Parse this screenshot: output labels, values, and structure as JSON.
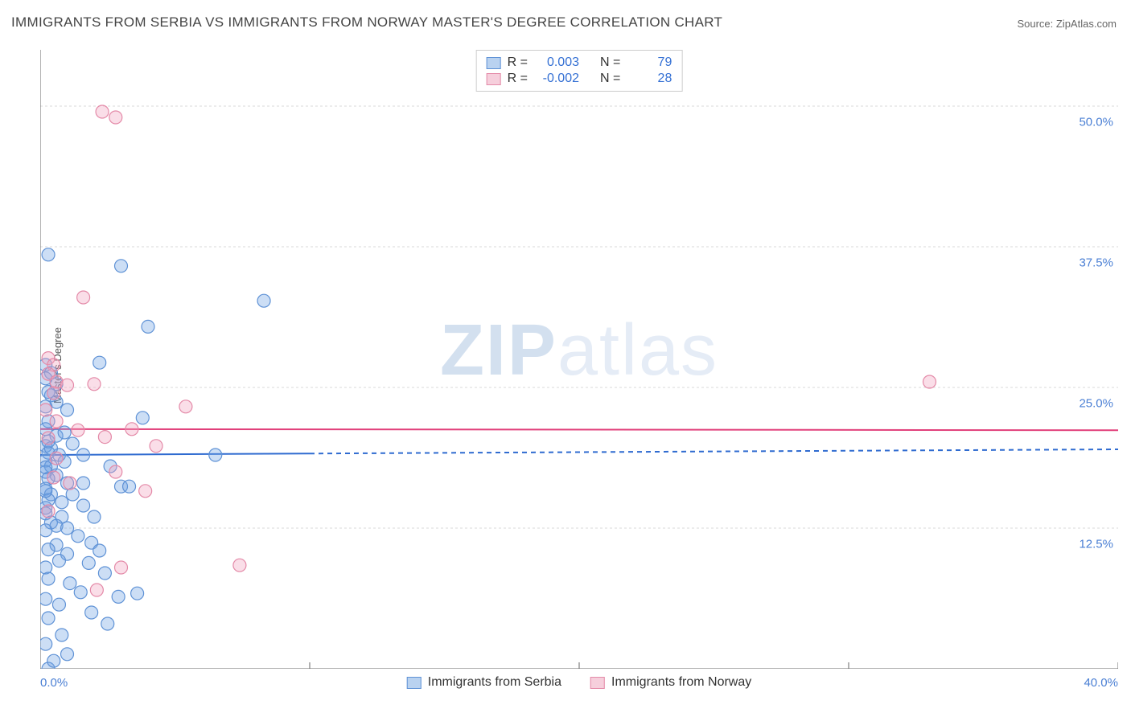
{
  "title": "IMMIGRANTS FROM SERBIA VS IMMIGRANTS FROM NORWAY MASTER'S DEGREE CORRELATION CHART",
  "source": "Source: ZipAtlas.com",
  "y_axis_label": "Master's Degree",
  "watermark_bold": "ZIP",
  "watermark_light": "atlas",
  "chart": {
    "type": "scatter",
    "xlim": [
      0.0,
      40.0
    ],
    "ylim": [
      0.0,
      55.0
    ],
    "x_ticks": [
      0.0,
      10.0,
      20.0,
      30.0,
      40.0
    ],
    "x_tick_labels_visible": [
      "0.0%",
      "40.0%"
    ],
    "y_grid_lines": [
      12.5,
      25.0,
      37.5,
      50.0
    ],
    "y_tick_labels": [
      "12.5%",
      "25.0%",
      "37.5%",
      "50.0%"
    ],
    "background_color": "#ffffff",
    "grid_color": "#d9d9d9",
    "axis_color": "#666666",
    "tick_label_color": "#4a7fd4",
    "marker_radius": 8,
    "marker_stroke_width": 1.2,
    "series": [
      {
        "name": "Immigrants from Serbia",
        "fill": "rgba(110,160,225,0.35)",
        "stroke": "#5f92d6",
        "swatch_fill": "#b9d2f0",
        "swatch_stroke": "#5f92d6",
        "R": "0.003",
        "N": "79",
        "regression": {
          "y_at_xmin": 19.0,
          "y_at_xmax": 19.5,
          "solid_until_x": 10.0,
          "color": "#2f6bd0",
          "width": 2
        },
        "points": [
          [
            0.3,
            36.8
          ],
          [
            3.0,
            35.8
          ],
          [
            4.0,
            30.4
          ],
          [
            8.3,
            32.7
          ],
          [
            2.2,
            27.2
          ],
          [
            0.2,
            27.0
          ],
          [
            0.4,
            26.3
          ],
          [
            0.6,
            25.3
          ],
          [
            0.4,
            24.3
          ],
          [
            0.6,
            23.7
          ],
          [
            0.2,
            23.3
          ],
          [
            1.0,
            23.0
          ],
          [
            3.8,
            22.3
          ],
          [
            0.3,
            22.0
          ],
          [
            0.2,
            21.3
          ],
          [
            0.6,
            20.7
          ],
          [
            1.2,
            20.0
          ],
          [
            0.2,
            19.8
          ],
          [
            0.3,
            19.2
          ],
          [
            0.7,
            19.0
          ],
          [
            1.6,
            19.0
          ],
          [
            6.5,
            19.0
          ],
          [
            0.2,
            18.5
          ],
          [
            0.4,
            18.0
          ],
          [
            2.6,
            18.0
          ],
          [
            0.2,
            17.5
          ],
          [
            0.6,
            17.2
          ],
          [
            0.3,
            16.9
          ],
          [
            1.0,
            16.5
          ],
          [
            1.6,
            16.5
          ],
          [
            3.0,
            16.2
          ],
          [
            3.3,
            16.2
          ],
          [
            0.2,
            16.0
          ],
          [
            0.4,
            15.5
          ],
          [
            1.2,
            15.5
          ],
          [
            0.3,
            15.0
          ],
          [
            0.8,
            14.8
          ],
          [
            1.6,
            14.5
          ],
          [
            0.2,
            14.3
          ],
          [
            0.2,
            13.8
          ],
          [
            0.8,
            13.5
          ],
          [
            2.0,
            13.5
          ],
          [
            0.4,
            13.0
          ],
          [
            0.6,
            12.7
          ],
          [
            1.0,
            12.5
          ],
          [
            0.2,
            12.3
          ],
          [
            1.4,
            11.8
          ],
          [
            1.9,
            11.2
          ],
          [
            0.6,
            11.0
          ],
          [
            2.2,
            10.5
          ],
          [
            0.3,
            10.6
          ],
          [
            1.0,
            10.2
          ],
          [
            0.7,
            9.6
          ],
          [
            1.8,
            9.4
          ],
          [
            0.2,
            9.0
          ],
          [
            2.4,
            8.5
          ],
          [
            0.3,
            8.0
          ],
          [
            1.1,
            7.6
          ],
          [
            1.5,
            6.8
          ],
          [
            2.9,
            6.4
          ],
          [
            3.6,
            6.7
          ],
          [
            0.2,
            6.2
          ],
          [
            0.7,
            5.7
          ],
          [
            1.9,
            5.0
          ],
          [
            0.3,
            4.5
          ],
          [
            2.5,
            4.0
          ],
          [
            0.8,
            3.0
          ],
          [
            0.2,
            2.2
          ],
          [
            1.0,
            1.3
          ],
          [
            0.3,
            0.0
          ],
          [
            0.5,
            0.7
          ],
          [
            0.2,
            15.8
          ],
          [
            0.9,
            21.0
          ],
          [
            0.3,
            24.6
          ],
          [
            0.2,
            25.8
          ],
          [
            0.4,
            19.6
          ],
          [
            0.2,
            17.9
          ],
          [
            0.9,
            18.4
          ],
          [
            0.3,
            20.2
          ]
        ]
      },
      {
        "name": "Immigrants from Norway",
        "fill": "rgba(240,160,190,0.35)",
        "stroke": "#e48aa8",
        "swatch_fill": "#f6cfdc",
        "swatch_stroke": "#e48aa8",
        "R": "-0.002",
        "N": "28",
        "regression": {
          "y_at_xmin": 21.3,
          "y_at_xmax": 21.2,
          "solid_until_x": 40.0,
          "color": "#e13f7a",
          "width": 2
        },
        "points": [
          [
            2.3,
            49.5
          ],
          [
            2.8,
            49.0
          ],
          [
            1.6,
            33.0
          ],
          [
            0.3,
            27.6
          ],
          [
            0.5,
            27.0
          ],
          [
            0.3,
            26.2
          ],
          [
            0.6,
            25.5
          ],
          [
            1.0,
            25.2
          ],
          [
            2.0,
            25.3
          ],
          [
            0.5,
            24.5
          ],
          [
            5.4,
            23.3
          ],
          [
            33.0,
            25.5
          ],
          [
            0.2,
            23.0
          ],
          [
            0.6,
            22.0
          ],
          [
            1.4,
            21.2
          ],
          [
            2.4,
            20.6
          ],
          [
            3.4,
            21.3
          ],
          [
            4.3,
            19.8
          ],
          [
            0.6,
            18.7
          ],
          [
            2.8,
            17.5
          ],
          [
            0.5,
            17.0
          ],
          [
            1.1,
            16.5
          ],
          [
            3.9,
            15.8
          ],
          [
            0.3,
            14.0
          ],
          [
            3.0,
            9.0
          ],
          [
            7.4,
            9.2
          ],
          [
            2.1,
            7.0
          ],
          [
            0.3,
            20.5
          ]
        ]
      }
    ]
  },
  "stats_box": {
    "R_label": "R = ",
    "N_label": "N = "
  },
  "bottom_legend": {
    "series1": "Immigrants from Serbia",
    "series2": "Immigrants from Norway"
  }
}
